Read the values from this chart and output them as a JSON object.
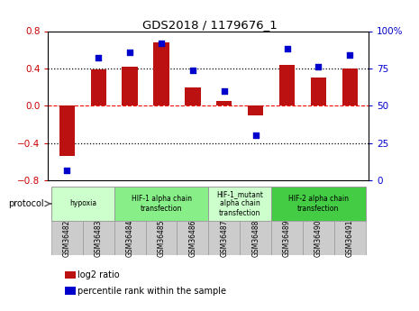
{
  "title": "GDS2018 / 1179676_1",
  "samples": [
    "GSM36482",
    "GSM36483",
    "GSM36484",
    "GSM36485",
    "GSM36486",
    "GSM36487",
    "GSM36488",
    "GSM36489",
    "GSM36490",
    "GSM36491"
  ],
  "log2_ratio": [
    -0.54,
    0.39,
    0.42,
    0.68,
    0.2,
    0.05,
    -0.1,
    0.44,
    0.3,
    0.4
  ],
  "percentile_rank": [
    7,
    82,
    86,
    92,
    74,
    60,
    30,
    88,
    76,
    84
  ],
  "bar_color": "#bb1111",
  "dot_color": "#0000cc",
  "ylim_left": [
    -0.8,
    0.8
  ],
  "ylim_right": [
    0,
    100
  ],
  "yticks_left": [
    -0.8,
    -0.4,
    0.0,
    0.4,
    0.8
  ],
  "yticks_right": [
    0,
    25,
    50,
    75,
    100
  ],
  "yticklabels_right": [
    "0",
    "25",
    "50",
    "75",
    "100%"
  ],
  "dotted_lines": [
    -0.4,
    0.4
  ],
  "red_line_at": 0.0,
  "protocols": [
    {
      "label": "hypoxia",
      "start": 0,
      "end": 1,
      "color": "#ccffcc"
    },
    {
      "label": "HIF-1 alpha chain\ntransfection",
      "start": 2,
      "end": 4,
      "color": "#88ee88"
    },
    {
      "label": "HIF-1_mutant\nalpha chain\ntransfection",
      "start": 5,
      "end": 6,
      "color": "#ccffcc"
    },
    {
      "label": "HIF-2 alpha chain\ntransfection",
      "start": 7,
      "end": 9,
      "color": "#44cc44"
    }
  ],
  "legend_labels": [
    "log2 ratio",
    "percentile rank within the sample"
  ],
  "protocol_label": "protocol",
  "background_color": "#ffffff",
  "tick_label_color_left": "#cc0000",
  "tick_label_color_right": "#0000cc",
  "bar_width": 0.5
}
